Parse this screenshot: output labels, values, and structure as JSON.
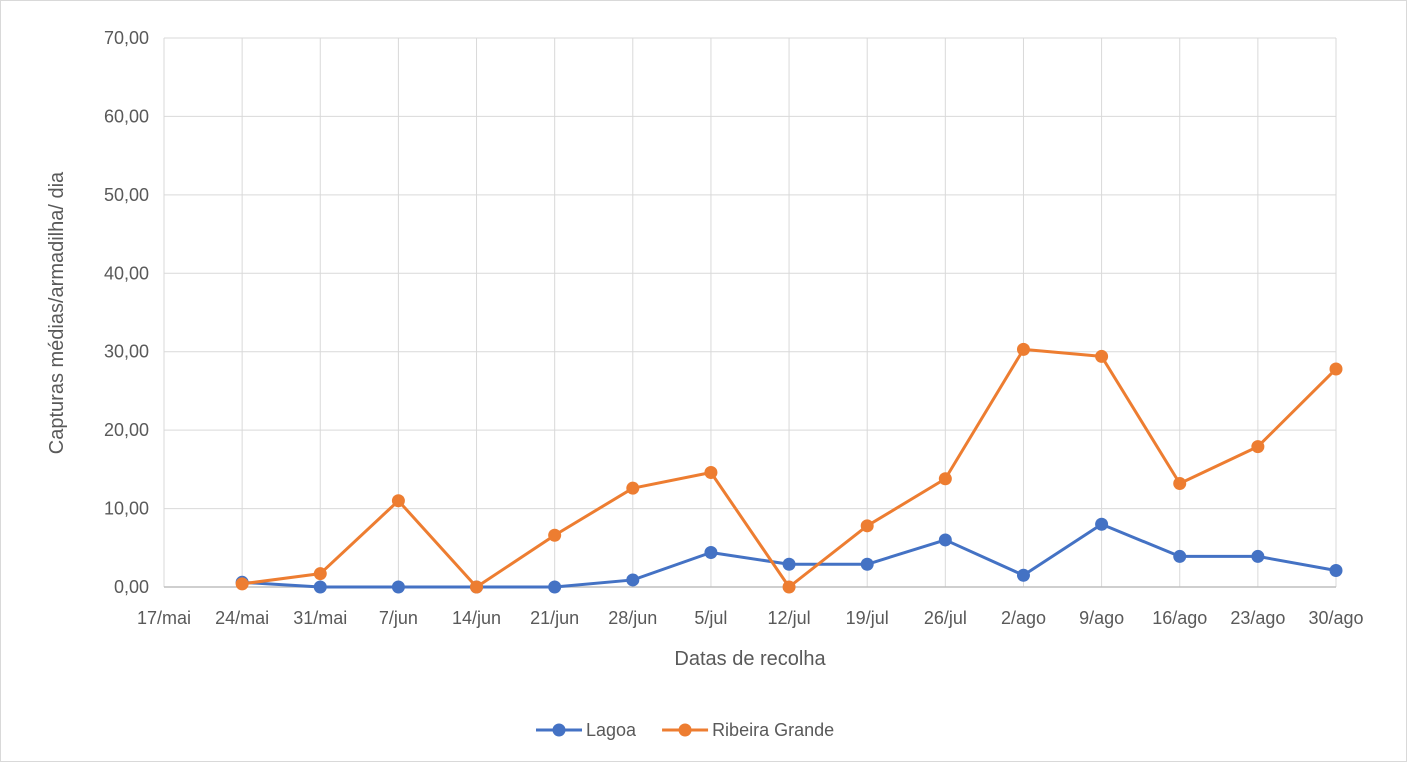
{
  "chart_data": {
    "type": "line",
    "title": "",
    "xlabel": "Datas de recolha",
    "ylabel": "Capturas médias/armadilha/  dia",
    "categories": [
      "17/mai",
      "24/mai",
      "31/mai",
      "7/jun",
      "14/jun",
      "21/jun",
      "28/jun",
      "5/jul",
      "12/jul",
      "19/jul",
      "26/jul",
      "2/ago",
      "9/ago",
      "16/ago",
      "23/ago",
      "30/ago"
    ],
    "y_ticks": [
      "0,00",
      "10,00",
      "20,00",
      "30,00",
      "40,00",
      "50,00",
      "60,00",
      "70,00"
    ],
    "ylim": [
      0,
      70
    ],
    "grid": true,
    "legend_position": "bottom",
    "series": [
      {
        "name": "Lagoa",
        "color": "#4472c4",
        "points": [
          [
            1,
            0.6
          ],
          [
            2,
            0.0
          ],
          [
            3,
            0.0
          ],
          [
            4,
            0.0
          ],
          [
            5,
            0.0
          ],
          [
            6,
            0.9
          ],
          [
            7,
            4.4
          ],
          [
            8,
            2.9
          ],
          [
            9,
            2.9
          ],
          [
            10,
            6.0
          ],
          [
            11,
            1.5
          ],
          [
            12,
            8.0
          ],
          [
            13,
            3.9
          ],
          [
            14,
            3.9
          ],
          [
            15,
            2.1
          ]
        ]
      },
      {
        "name": "Ribeira Grande",
        "color": "#ed7d31",
        "points": [
          [
            1,
            0.4
          ],
          [
            2,
            1.7
          ],
          [
            3,
            11.0
          ],
          [
            4,
            0.0
          ],
          [
            5,
            6.6
          ],
          [
            6,
            12.6
          ],
          [
            7,
            14.6
          ],
          [
            8,
            0.0
          ],
          [
            9,
            7.8
          ],
          [
            10,
            13.8
          ],
          [
            11,
            30.3
          ],
          [
            12,
            29.4
          ],
          [
            13,
            13.2
          ],
          [
            14,
            17.9
          ],
          [
            15,
            27.8
          ]
        ]
      }
    ]
  }
}
